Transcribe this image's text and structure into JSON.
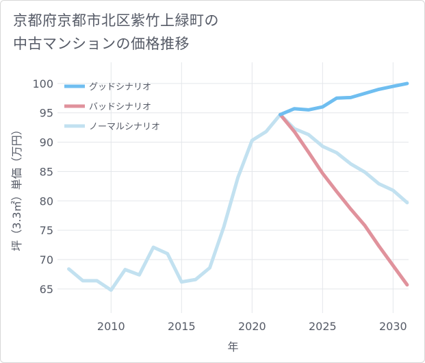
{
  "title_line1": "京都府京都市北区紫竹上緑町の",
  "title_line2": "中古マンションの価格推移",
  "chart_data": {
    "type": "line",
    "xlabel": "年",
    "ylabel": "坪（3.3㎡）単価（万円）",
    "xlim": [
      2006.2,
      2031.1
    ],
    "ylim": [
      60.9,
      103.6
    ],
    "x_ticks": [
      2010,
      2015,
      2020,
      2025,
      2030
    ],
    "y_ticks": [
      65,
      70,
      75,
      80,
      85,
      90,
      95,
      100
    ],
    "grid": true,
    "legend_position": "top-left",
    "series": [
      {
        "name": "グッドシナリオ",
        "color": "#6fbef0",
        "x": [
          2022,
          2023,
          2024,
          2025,
          2026,
          2027,
          2028,
          2029,
          2030,
          2031
        ],
        "values": [
          94.7,
          95.7,
          95.5,
          96.0,
          97.5,
          97.6,
          98.3,
          99.0,
          99.5,
          100.0
        ]
      },
      {
        "name": "バッドシナリオ",
        "color": "#e0929c",
        "x": [
          2022,
          2023,
          2024,
          2025,
          2026,
          2027,
          2028,
          2029,
          2030,
          2031
        ],
        "values": [
          94.7,
          91.8,
          88.3,
          84.7,
          81.6,
          78.6,
          75.8,
          72.3,
          69.0,
          65.7
        ]
      },
      {
        "name": "ノーマルシナリオ",
        "color": "#c2e1f0",
        "x": [
          2007,
          2008,
          2009,
          2010,
          2011,
          2012,
          2013,
          2014,
          2015,
          2016,
          2017,
          2018,
          2019,
          2020,
          2021,
          2022,
          2023,
          2024,
          2025,
          2026,
          2027,
          2028,
          2029,
          2030,
          2031
        ],
        "values": [
          68.4,
          66.4,
          66.4,
          64.8,
          68.3,
          67.4,
          72.1,
          71.0,
          66.2,
          66.6,
          68.6,
          75.6,
          84.0,
          90.3,
          91.8,
          94.7,
          92.3,
          91.3,
          89.3,
          88.2,
          86.3,
          84.9,
          82.9,
          81.8,
          79.7
        ]
      }
    ]
  }
}
